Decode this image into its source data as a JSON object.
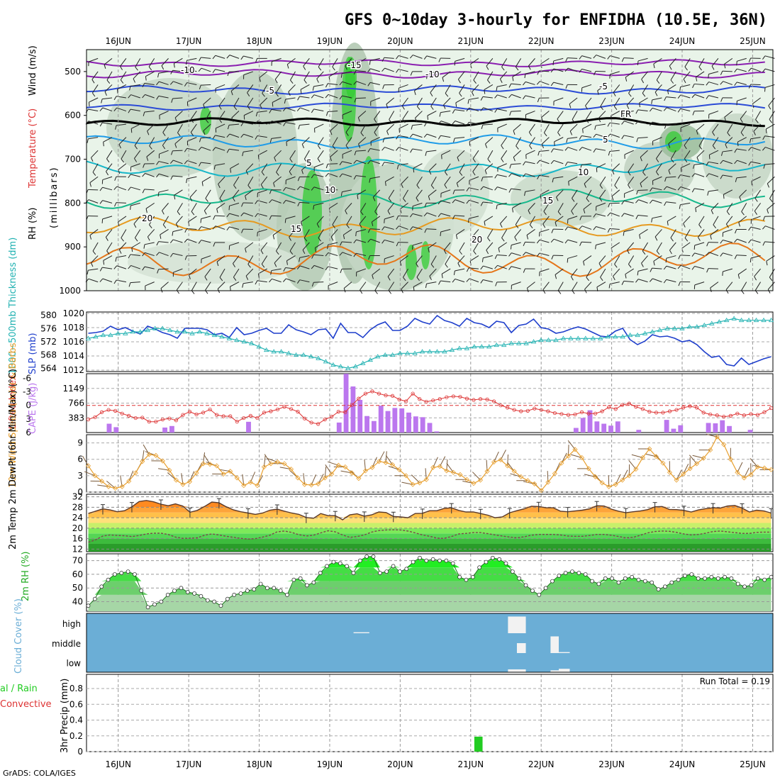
{
  "title": "GFS 0~10day 3-hourly for ENFIDHA (10.5E, 36N)",
  "credit": "GrADS: COLA/IGES",
  "day_labels": [
    "16JUN",
    "17JUN",
    "18JUN",
    "19JUN",
    "20JUN",
    "21JUN",
    "22JUN",
    "23JUN",
    "24JUN",
    "25JUN"
  ],
  "colors": {
    "rh_green": "#33cc33",
    "slp_blue": "#1f3fcc",
    "thickness_cyan": "#22b2b2",
    "lifted_red": "#dd3333",
    "cape_purple": "#bb77ee",
    "wind_orange": "#e8a030",
    "temp_orange": "#e87a20",
    "rh2m_green": "#33ee33",
    "cloud_blue": "#6baed6",
    "precip_green": "#22cc22"
  },
  "chart_data": [
    {
      "type": "heatmap",
      "panel": "upper-air",
      "ylabel_parts": [
        "RH (%)",
        "Temperature (°C)",
        "Wind (m/s)"
      ],
      "yunit": "(millibars)",
      "y_ticks": [
        "500",
        "600",
        "700",
        "800",
        "900",
        "1000"
      ],
      "ylim": [
        1000,
        450
      ],
      "contour_labels": [
        "-15",
        "-10",
        "-10",
        "-5",
        "-5",
        "FR",
        "5",
        "5",
        "10",
        "10",
        "15",
        "15",
        "20",
        "20"
      ]
    },
    {
      "type": "line",
      "panel": "slp-thickness",
      "left_ylabel": "1000~500mb Thickness (dm)",
      "right_ylabel": "SLP (mb)",
      "left_ticks": [
        "580",
        "576",
        "572",
        "568",
        "564"
      ],
      "right_ticks": [
        "1020",
        "1018",
        "1016",
        "1014",
        "1012"
      ],
      "slp_range": [
        1011.8,
        1020.2
      ],
      "slp": [
        1017.2,
        1017.3,
        1017.5,
        1018.2,
        1017.7,
        1018.0,
        1017.5,
        1017.1,
        1018.2,
        1017.8,
        1017.3,
        1017.0,
        1016.5,
        1017.9,
        1017.9,
        1017.9,
        1017.7,
        1017.0,
        1017.2,
        1016.6,
        1018.0,
        1017.0,
        1017.2,
        1017.6,
        1017.9,
        1017.2,
        1017.2,
        1018.4,
        1017.7,
        1017.4,
        1017.0,
        1017.7,
        1017.8,
        1016.5,
        1018.6,
        1017.3,
        1017.3,
        1016.6,
        1017.7,
        1018.4,
        1018.8,
        1017.6,
        1017.6,
        1018.2,
        1019.3,
        1018.8,
        1018.5,
        1019.7,
        1019.0,
        1018.7,
        1018.2,
        1019.3,
        1018.7,
        1018.5,
        1018.0,
        1018.9,
        1018.7,
        1017.3,
        1018.3,
        1018.5,
        1019.2,
        1018.0,
        1017.8,
        1017.2,
        1017.4,
        1017.8,
        1018.1,
        1017.8,
        1017.3,
        1016.8,
        1016.7,
        1017.5,
        1017.9,
        1016.3,
        1015.6,
        1016.1,
        1017.0,
        1016.7,
        1016.8,
        1016.5,
        1016.0,
        1016.2,
        1015.6,
        1014.6,
        1013.8,
        1014.0,
        1012.8,
        1012.6,
        1013.7,
        1012.8,
        1013.2,
        1013.6,
        1013.9
      ],
      "thickness": [
        573.0,
        573.5,
        574.0,
        574.0,
        574.5,
        574.5,
        575.0,
        575.0,
        575.5,
        576.0,
        576.0,
        575.5,
        575.0,
        575.0,
        574.5,
        575.0,
        574.5,
        574.0,
        573.5,
        573.0,
        572.5,
        572.0,
        571.5,
        570.5,
        569.5,
        569.0,
        569.0,
        568.5,
        568.0,
        568.0,
        567.5,
        567.0,
        566.0,
        565.0,
        564.5,
        564.0,
        564.5,
        565.5,
        566.5,
        567.5,
        568.0,
        568.0,
        568.5,
        568.5,
        568.5,
        569.0,
        569.0,
        569.0,
        569.0,
        569.5,
        570.0,
        570.0,
        570.5,
        570.5,
        570.5,
        571.0,
        571.0,
        571.5,
        571.5,
        571.5,
        572.0,
        572.5,
        572.5,
        572.5,
        573.0,
        573.0,
        573.0,
        573.0,
        573.0,
        573.0,
        573.5,
        573.5,
        573.5,
        574.0,
        574.0,
        574.5,
        575.0,
        575.5,
        576.0,
        576.0,
        576.0,
        576.5,
        576.5,
        577.0,
        577.5,
        578.0,
        578.5,
        579.0,
        578.5,
        578.5,
        578.5,
        578.5,
        578.5
      ]
    },
    {
      "type": "bar",
      "panel": "cape-lifted-index",
      "left_ylabel": "Lifted Index",
      "right_ylabel": "CAPE (J/kg)",
      "left_ticks": [
        "-3",
        "0",
        "3",
        "6"
      ],
      "left_top_tick": "-6",
      "right_ticks": [
        "1149",
        "766",
        "383"
      ],
      "cape_max": 1532,
      "cape": [
        0,
        0,
        0,
        230,
        140,
        0,
        0,
        0,
        0,
        0,
        0,
        130,
        170,
        0,
        0,
        0,
        0,
        0,
        0,
        0,
        0,
        0,
        0,
        280,
        0,
        0,
        0,
        0,
        0,
        0,
        0,
        0,
        0,
        0,
        0,
        0,
        260,
        1530,
        1200,
        850,
        430,
        300,
        700,
        560,
        640,
        630,
        520,
        420,
        400,
        250,
        30,
        0,
        0,
        0,
        0,
        0,
        0,
        0,
        0,
        0,
        0,
        0,
        0,
        0,
        0,
        0,
        0,
        0,
        0,
        0,
        120,
        380,
        580,
        290,
        230,
        180,
        290,
        0,
        0,
        70,
        0,
        0,
        0,
        330,
        100,
        190,
        0,
        0,
        0,
        250,
        240,
        320,
        170,
        0,
        0,
        70,
        0,
        0,
        0
      ],
      "lifted_index": [
        3.1,
        2.6,
        1.5,
        1.0,
        1.2,
        1.8,
        2.3,
        2.8,
        2.7,
        3.6,
        3.6,
        3.1,
        2.9,
        3.3,
        2.1,
        1.4,
        2.0,
        1.6,
        0.9,
        2.1,
        2.4,
        2.4,
        3.6,
        2.8,
        2.3,
        2.8,
        1.6,
        1.3,
        0.9,
        0.3,
        0.8,
        1.4,
        2.9,
        3.8,
        4.1,
        3.1,
        2.5,
        1.4,
        1.5,
        -0.1,
        -1.5,
        -2.6,
        -3.1,
        -2.6,
        -2.2,
        -2.1,
        -1.3,
        -0.9,
        -2.6,
        -1.4,
        -0.8,
        -1.1,
        -1.4,
        -1.8,
        -2.0,
        -1.9,
        -1.5,
        -1.2,
        -1.4,
        -1.3,
        -0.9,
        0.0,
        0.5,
        1.0,
        1.3,
        1.2,
        0.7,
        1.0,
        1.3,
        1.7,
        1.9,
        2.1,
        2.0,
        1.5,
        1.8,
        1.8,
        1.3,
        0.4,
        0.8,
        -0.1,
        -0.4,
        0.3,
        0.8,
        1.4,
        1.6,
        1.6,
        1.3,
        1.0,
        0.5,
        0.2,
        0.5,
        1.6,
        2.0,
        2.2,
        2.5,
        2.3,
        1.8,
        2.2,
        1.9,
        2.1,
        1.5,
        0.6
      ]
    },
    {
      "type": "line",
      "panel": "wind10m",
      "ylabel": "10m Wind Speed (m/s) & Barbs",
      "y_ticks": [
        "9",
        "6",
        "3",
        "0"
      ],
      "ylim": [
        0,
        10.5
      ],
      "values": [
        4.8,
        3.0,
        2.0,
        1.0,
        0.7,
        1.0,
        2.0,
        3.5,
        5.6,
        6.9,
        6.7,
        5.7,
        4.0,
        2.2,
        1.4,
        1.9,
        3.5,
        5.2,
        5.1,
        4.8,
        3.3,
        3.8,
        2.6,
        1.2,
        1.8,
        1.2,
        4.6,
        5.2,
        5.5,
        5.2,
        4.2,
        2.6,
        1.4,
        1.3,
        1.5,
        2.6,
        3.3,
        4.9,
        4.6,
        3.5,
        2.5,
        3.9,
        4.5,
        5.6,
        5.4,
        5.0,
        4.1,
        3.0,
        1.4,
        1.7,
        2.3,
        4.5,
        4.7,
        3.9,
        3.6,
        3.2,
        2.3,
        1.6,
        2.2,
        3.8,
        5.5,
        5.9,
        4.8,
        3.8,
        2.8,
        2.1,
        1.5,
        0.3,
        1.8,
        3.4,
        5.3,
        6.6,
        7.8,
        6.3,
        4.3,
        2.8,
        1.7,
        1.0,
        1.4,
        2.2,
        3.0,
        4.2,
        6.3,
        7.9,
        6.5,
        5.3,
        3.6,
        2.2,
        3.3,
        4.3,
        5.2,
        6.2,
        7.7,
        10.1,
        8.7,
        6.0,
        3.6,
        2.6,
        3.2,
        4.6,
        4.4,
        4.1
      ]
    },
    {
      "type": "area",
      "panel": "temp-dewpoint",
      "ylabel": "2m Temp 2m DewPt (6hr Min/Max) (°C)",
      "y_ticks": [
        "32",
        "28",
        "24",
        "20",
        "16",
        "12"
      ],
      "y_bottom_tick": "12",
      "ylim": [
        11,
        33
      ],
      "temp": [
        25.6,
        26.5,
        27.4,
        27.0,
        26.3,
        26.7,
        28.2,
        30.2,
        30.6,
        30.1,
        29.2,
        28.6,
        29.3,
        28.5,
        26.1,
        26.8,
        28.3,
        30.0,
        29.7,
        28.2,
        27.0,
        26.3,
        25.8,
        25.3,
        25.8,
        26.9,
        27.3,
        26.5,
        25.8,
        25.3,
        24.1,
        23.8,
        25.6,
        24.8,
        24.8,
        23.2,
        25.1,
        25.5,
        24.6,
        25.1,
        26.2,
        26.0,
        24.5,
        24.3,
        24.0,
        25.6,
        25.7,
        26.7,
        26.7,
        27.6,
        27.8,
        26.8,
        26.2,
        26.2,
        25.6,
        25.0,
        24.0,
        24.3,
        25.9,
        26.7,
        27.4,
        28.4,
        28.3,
        27.8,
        27.8,
        26.5,
        26.3,
        26.6,
        26.9,
        27.4,
        28.6,
        28.5,
        27.3,
        26.5,
        25.9,
        26.3,
        26.6,
        27.1,
        28.2,
        28.3,
        27.2,
        27.1,
        26.8,
        26.2,
        27.0,
        27.5,
        27.8,
        27.7,
        28.5,
        28.7,
        27.7,
        26.2,
        26.9,
        26.6,
        25.8
      ],
      "dewpoint": [
        14.6,
        15.5,
        17.0,
        17.4,
        17.2,
        17.1,
        16.8,
        17.2,
        17.8,
        18.1,
        18.1,
        17.6,
        16.6,
        16.1,
        16.2,
        16.3,
        17.3,
        17.8,
        17.4,
        16.9,
        16.5,
        16.1,
        15.8,
        16.0,
        16.6,
        17.3,
        18.6,
        18.9,
        18.4,
        17.5,
        17.0,
        17.3,
        18.2,
        19.0,
        18.6,
        17.4,
        16.5,
        16.8,
        17.4,
        18.5,
        19.1,
        19.3,
        19.4,
        19.3,
        18.9,
        18.2,
        17.4,
        16.9,
        16.2,
        16.1,
        16.8,
        17.8,
        18.0,
        18.3,
        18.3,
        17.9,
        17.4,
        17.0,
        16.6,
        16.3,
        16.7,
        17.3,
        17.6,
        17.6,
        17.6,
        17.4,
        17.0,
        16.9,
        16.9,
        17.2,
        17.6,
        17.6,
        17.3,
        16.8,
        16.3,
        16.5,
        17.3,
        18.2,
        18.7,
        18.9,
        18.8,
        18.4,
        17.8,
        17.4,
        17.6,
        18.1,
        18.7,
        18.9,
        18.6,
        18.3,
        18.0,
        18.0,
        18.4,
        18.5,
        18.5
      ]
    },
    {
      "type": "area",
      "panel": "rh2m",
      "ylabel": "2m RH (%)",
      "y_ticks": [
        "70",
        "60",
        "50",
        "40"
      ],
      "ylim": [
        33,
        75
      ],
      "values": [
        37,
        42,
        51,
        56,
        60,
        61,
        62,
        60,
        48,
        36,
        38,
        40,
        45,
        48,
        50,
        47,
        46,
        44,
        41,
        40,
        37,
        42,
        45,
        46,
        48,
        49,
        53,
        50,
        50,
        48,
        45,
        56,
        57,
        52,
        54,
        61,
        66,
        69,
        68,
        66,
        61,
        70,
        73,
        73,
        61,
        62,
        66,
        62,
        64,
        69,
        72,
        70,
        71,
        70,
        70,
        68,
        58,
        56,
        58,
        65,
        69,
        72,
        71,
        68,
        62,
        57,
        52,
        48,
        45,
        50,
        55,
        59,
        61,
        62,
        61,
        60,
        55,
        53,
        57,
        57,
        54,
        57,
        58,
        56,
        55,
        54,
        49,
        51,
        54,
        56,
        59,
        60,
        57,
        57,
        58,
        57,
        58,
        57,
        53,
        51,
        52,
        57,
        56,
        58
      ]
    },
    {
      "type": "heatmap",
      "panel": "cloud-cover",
      "ylabel": "Cloud Cover (%)",
      "levels": [
        "high",
        "middle",
        "low"
      ],
      "cloud_blocks": [
        {
          "level": "high",
          "x_start": 26.3,
          "x_end": 28.6,
          "fraction": 0.05
        },
        {
          "level": "high",
          "x_start": 48.8,
          "x_end": 51.4,
          "fraction": 0.84
        },
        {
          "level": "middle",
          "x_start": 50.1,
          "x_end": 51.4,
          "fraction": 0.5
        },
        {
          "level": "middle",
          "x_start": 55.0,
          "x_end": 56.2,
          "fraction": 0.84
        },
        {
          "level": "middle",
          "x_start": 56.2,
          "x_end": 57.8,
          "fraction": 0.05
        },
        {
          "level": "low",
          "x_start": 48.8,
          "x_end": 51.4,
          "fraction": 0.15
        },
        {
          "level": "low",
          "x_start": 55.0,
          "x_end": 56.2,
          "fraction": 0.1
        },
        {
          "level": "low",
          "x_start": 56.2,
          "x_end": 57.8,
          "fraction": 0.18
        }
      ]
    },
    {
      "type": "bar",
      "panel": "precip",
      "left_ylabel": "3hr Precip (mm)",
      "side_label_top": "al / Rain",
      "side_label_bottom": "Convective",
      "annotation": "Run Total = 0.19",
      "y_ticks": [
        "0.8",
        "0.6",
        "0.4",
        "0.2",
        "0"
      ],
      "ylim": [
        0,
        0.98
      ],
      "bars": [
        {
          "x_start": 56.5,
          "x_end": 57.7,
          "value": 0.19
        }
      ]
    }
  ]
}
